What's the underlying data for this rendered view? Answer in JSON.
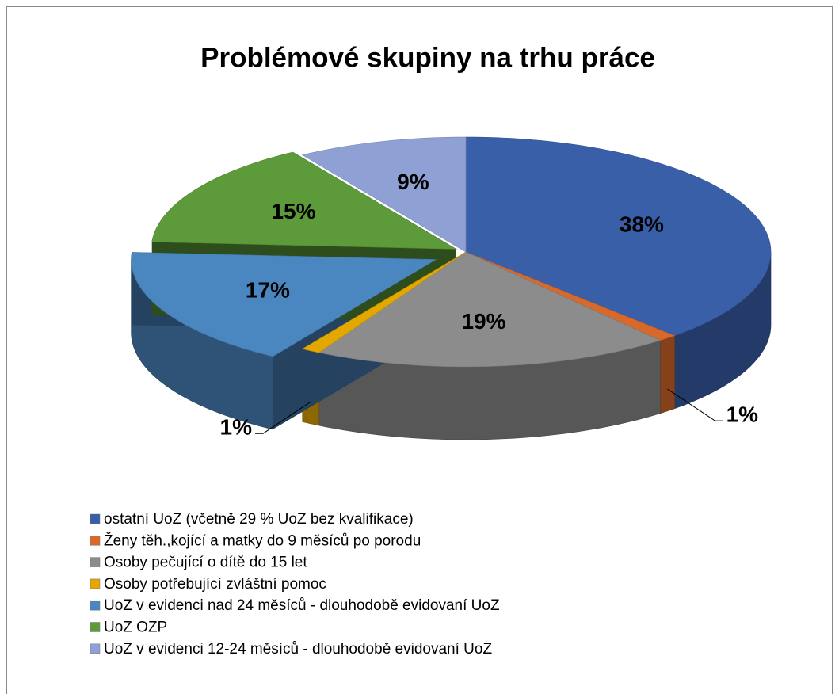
{
  "chart_data": {
    "type": "pie",
    "title": "Problémové skupiny na trhu práce",
    "categories": [
      "ostatní UoZ (včetně 29 % UoZ bez kvalifikace)",
      "Ženy těh.,kojící a matky do 9 měsíců po porodu",
      "Osoby pečující o dítě do 15 let",
      "Osoby potřebující zvláštní pomoc",
      "UoZ v evidenci nad 24 měsíců - dlouhodobě evidovaní UoZ",
      "UoZ OZP",
      "UoZ v evidenci 12-24 měsíců - dlouhodobě evidovaní UoZ"
    ],
    "values": [
      38,
      1,
      19,
      1,
      17,
      15,
      9
    ],
    "value_labels": [
      "38%",
      "1%",
      "19%",
      "1%",
      "17%",
      "15%",
      "9%"
    ],
    "colors": [
      "#3a5fa9",
      "#d9692a",
      "#8c8c8c",
      "#e3a700",
      "#4a86bf",
      "#5c9a3a",
      "#8fa0d4"
    ],
    "legend": "bottom"
  }
}
